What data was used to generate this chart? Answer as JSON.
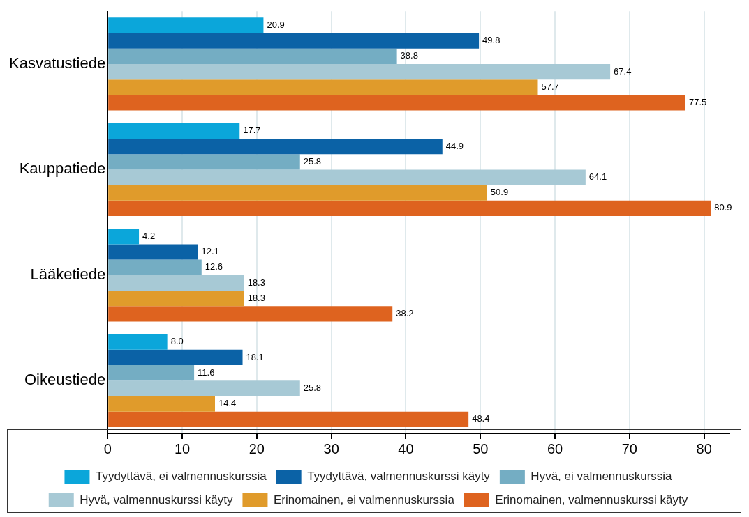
{
  "chart_data": {
    "type": "bar",
    "orientation": "horizontal",
    "categories": [
      "Kasvatustiede",
      "Kauppatiede",
      "Lääketiede",
      "Oikeustiede"
    ],
    "series": [
      {
        "name": "Tyydyttävä, ei valmennuskurssia",
        "color": "#0ba6da",
        "values": [
          20.9,
          17.7,
          4.2,
          8.0
        ],
        "value_labels": [
          "20.9",
          "17.7",
          "4.2",
          "8.0"
        ]
      },
      {
        "name": "Tyydyttävä, valmennuskurssi käyty",
        "color": "#0b62a6",
        "values": [
          49.8,
          44.9,
          12.1,
          18.1
        ],
        "value_labels": [
          "49.8",
          "44.9",
          "12.1",
          "18.1"
        ]
      },
      {
        "name": "Hyvä, ei valmennuskurssia",
        "color": "#74adc3",
        "values": [
          38.8,
          25.8,
          12.6,
          11.6
        ],
        "value_labels": [
          "38.8",
          "25.8",
          "12.6",
          "11.6"
        ]
      },
      {
        "name": "Hyvä, valmennuskurssi käyty",
        "color": "#a7c9d5",
        "values": [
          67.4,
          64.1,
          18.3,
          25.8
        ],
        "value_labels": [
          "67.4",
          "64.1",
          "18.3",
          "25.8"
        ]
      },
      {
        "name": "Erinomainen, ei valmennuskurssia",
        "color": "#e09b2b",
        "values": [
          57.7,
          50.9,
          18.3,
          14.4
        ],
        "value_labels": [
          "57.7",
          "50.9",
          "18.3",
          "14.4"
        ]
      },
      {
        "name": "Erinomainen, valmennuskurssi käyty",
        "color": "#de631f",
        "values": [
          77.5,
          80.9,
          38.2,
          48.4
        ],
        "value_labels": [
          "77.5",
          "80.9",
          "38.2",
          "48.4"
        ]
      }
    ],
    "xlim": [
      0,
      83.4
    ],
    "xticks": [
      0,
      10,
      20,
      30,
      40,
      50,
      60,
      70,
      80
    ],
    "grid": "x",
    "legend": "bottom"
  }
}
